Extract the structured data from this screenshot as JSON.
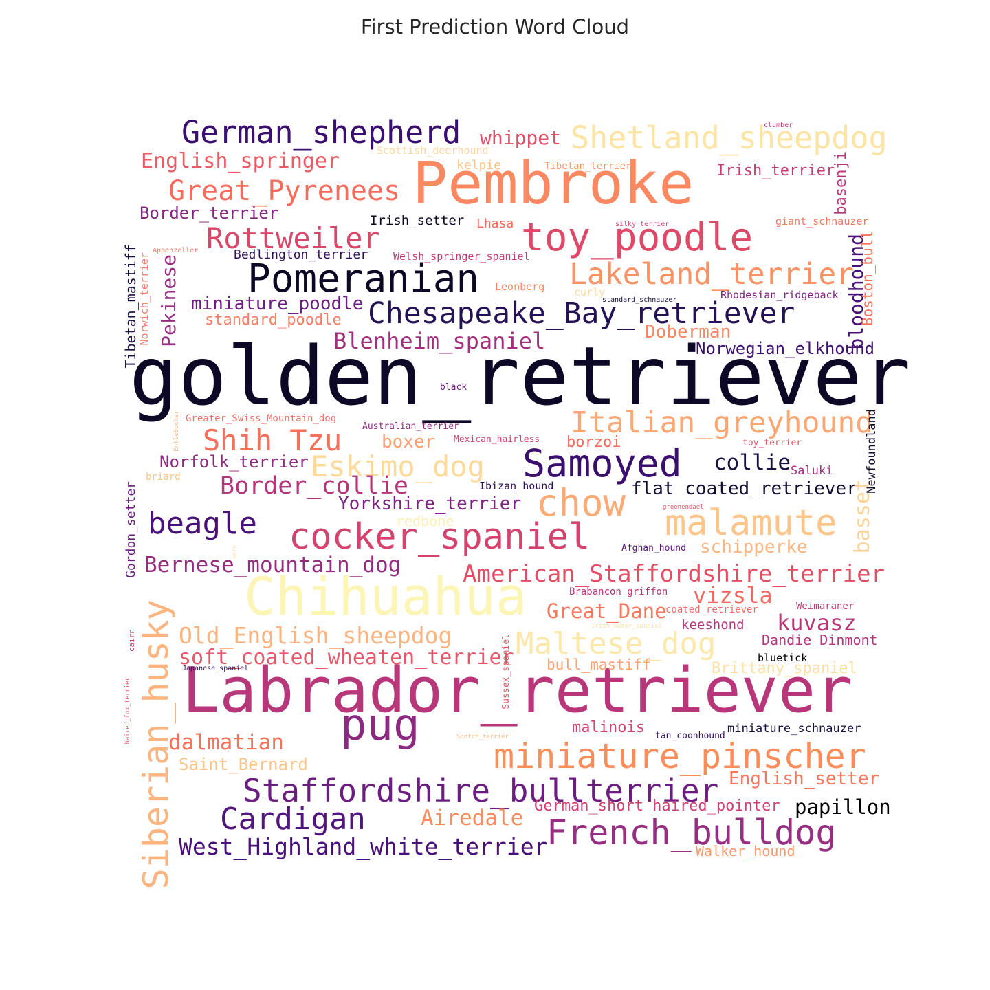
{
  "chart_data": {
    "type": "wordcloud",
    "title": "First Prediction Word Cloud",
    "words": [
      {
        "text": "golden_retriever",
        "weight": 100,
        "color": "#0c0826"
      },
      {
        "text": "Labrador_retriever",
        "weight": 68,
        "color": "#b8377a"
      },
      {
        "text": "Pembroke",
        "weight": 60,
        "color": "#fb8861"
      },
      {
        "text": "Chihuahua",
        "weight": 55,
        "color": "#fcf5b5"
      },
      {
        "text": "pug",
        "weight": 46,
        "color": "#8c2981"
      },
      {
        "text": "toy_poodle",
        "weight": 42,
        "color": "#de4968"
      },
      {
        "text": "Pomeranian",
        "weight": 42,
        "color": "#0c0826"
      },
      {
        "text": "chow",
        "weight": 40,
        "color": "#feaa74"
      },
      {
        "text": "Samoyed",
        "weight": 40,
        "color": "#3b0f70"
      },
      {
        "text": "cocker_spaniel",
        "weight": 39,
        "color": "#d3436e"
      },
      {
        "text": "miniature_pinscher",
        "weight": 38,
        "color": "#fc8d59"
      },
      {
        "text": "Siberian_husky",
        "weight": 38,
        "color": "#fdb47e"
      },
      {
        "text": "malamute",
        "weight": 38,
        "color": "#fec488"
      },
      {
        "text": "French_bulldog",
        "weight": 37,
        "color": "#962e81"
      },
      {
        "text": "Staffordshire_bullterrier",
        "weight": 34,
        "color": "#6b1d81"
      },
      {
        "text": "German_shepherd",
        "weight": 34,
        "color": "#3b0f70"
      },
      {
        "text": "Shetland_sheepdog",
        "weight": 34,
        "color": "#fde4a3"
      },
      {
        "text": "Cardigan",
        "weight": 33,
        "color": "#52157d"
      },
      {
        "text": "Lakeland_terrier",
        "weight": 32,
        "color": "#fc9163"
      },
      {
        "text": "Chesapeake_Bay_retriever",
        "weight": 32,
        "color": "#251254"
      },
      {
        "text": "Italian_greyhound",
        "weight": 32,
        "color": "#fea772"
      },
      {
        "text": "Maltese_dog",
        "weight": 32,
        "color": "#fde7a9"
      },
      {
        "text": "Eskimo_dog",
        "weight": 32,
        "color": "#feda9a"
      },
      {
        "text": "Great_Pyrenees",
        "weight": 31,
        "color": "#f66b5c"
      },
      {
        "text": "beagle",
        "weight": 31,
        "color": "#4a1079"
      },
      {
        "text": "Rottweiler",
        "weight": 30,
        "color": "#db476a"
      },
      {
        "text": "Shih Tzu",
        "weight": 30,
        "color": "#f7705c"
      },
      {
        "text": "American_Staffordshire_terrier",
        "weight": 27,
        "color": "#e34e65"
      },
      {
        "text": "Border_collie",
        "weight": 27,
        "color": "#b5367a"
      },
      {
        "text": "West_Highland_white_terrier",
        "weight": 27,
        "color": "#4a1079"
      },
      {
        "text": "Old_English_sheepdog",
        "weight": 27,
        "color": "#fdb37d"
      },
      {
        "text": "soft_coated_wheaten_terrier",
        "weight": 26,
        "color": "#e6576a"
      },
      {
        "text": "Blenheim_spaniel",
        "weight": 26,
        "color": "#a3307e"
      },
      {
        "text": "kuvasz",
        "weight": 26,
        "color": "#b8377a"
      },
      {
        "text": "vizsla",
        "weight": 26,
        "color": "#f4685d"
      },
      {
        "text": "Airedale",
        "weight": 26,
        "color": "#fc8c5f"
      },
      {
        "text": "collie",
        "weight": 26,
        "color": "#1a1042"
      },
      {
        "text": "dalmatian",
        "weight": 25,
        "color": "#f7705c"
      },
      {
        "text": "Bernese_mountain_dog",
        "weight": 25,
        "color": "#942c80"
      },
      {
        "text": "Great_Dane",
        "weight": 24,
        "color": "#f8765c"
      },
      {
        "text": "papillon",
        "weight": 24,
        "color": "#000004"
      },
      {
        "text": "English_springer",
        "weight": 24,
        "color": "#eb5b63"
      },
      {
        "text": "whippet",
        "weight": 24,
        "color": "#e04f67"
      },
      {
        "text": "miniature_poodle",
        "weight": 24,
        "color": "#6e1e81"
      },
      {
        "text": "Doberman",
        "weight": 24,
        "color": "#fb8761"
      },
      {
        "text": "Yorkshire_terrier",
        "weight": 24,
        "color": "#7c2382"
      },
      {
        "text": "flat coated_retriever",
        "weight": 24,
        "color": "#120d31"
      },
      {
        "text": "schipperke",
        "weight": 24,
        "color": "#feb47e"
      },
      {
        "text": "Saint_Bernard",
        "weight": 23,
        "color": "#fec488"
      },
      {
        "text": "English_setter",
        "weight": 23,
        "color": "#f8765c"
      },
      {
        "text": "boxer",
        "weight": 23,
        "color": "#fda06e"
      },
      {
        "text": "borzoi",
        "weight": 21,
        "color": "#f4685d"
      },
      {
        "text": "Norwegian_elkhound",
        "weight": 21,
        "color": "#3b0f70"
      },
      {
        "text": "Norfolk_terrier",
        "weight": 21,
        "color": "#902a81"
      },
      {
        "text": "Border_terrier",
        "weight": 21,
        "color": "#80257f"
      },
      {
        "text": "Pekinese",
        "weight": 24,
        "color": "#962e81"
      },
      {
        "text": "bloodhound",
        "weight": 24,
        "color": "#4a1079"
      },
      {
        "text": "basset",
        "weight": 24,
        "color": "#fed395"
      },
      {
        "text": "standard_poodle",
        "weight": 20,
        "color": "#f67e67"
      },
      {
        "text": "German_short haired_pointer",
        "weight": 20,
        "color": "#cf4070"
      },
      {
        "text": "Irish_terrier",
        "weight": 20,
        "color": "#c33d75"
      },
      {
        "text": "Brittany_spaniel",
        "weight": 20,
        "color": "#fde0a0"
      },
      {
        "text": "malinois",
        "weight": 20,
        "color": "#d3436e"
      },
      {
        "text": "bull_mastiff",
        "weight": 19,
        "color": "#fea16e"
      },
      {
        "text": "Dandie_Dinmont",
        "weight": 19,
        "color": "#b5367a"
      },
      {
        "text": "keeshond",
        "weight": 17,
        "color": "#b5367a"
      },
      {
        "text": "Walker_hound",
        "weight": 19,
        "color": "#fd9668"
      },
      {
        "text": "Irish_setter",
        "weight": 17,
        "color": "#0c0826"
      },
      {
        "text": "Tibetan_mastiff",
        "weight": 19,
        "color": "#1b1044"
      },
      {
        "text": "Boston_bull",
        "weight": 19,
        "color": "#f7725c"
      },
      {
        "text": "basenji",
        "weight": 19,
        "color": "#b8377a"
      },
      {
        "text": "Gordon_setter",
        "weight": 17,
        "color": "#6b1d81"
      },
      {
        "text": "Lhasa",
        "weight": 16,
        "color": "#f76a5c"
      },
      {
        "text": "kelpie",
        "weight": 16,
        "color": "#fec487"
      },
      {
        "text": "redbone",
        "weight": 18,
        "color": "#fdf0b5"
      },
      {
        "text": "Bedlington_terrier",
        "weight": 16,
        "color": "#2f115a"
      },
      {
        "text": "miniature_schnauzer",
        "weight": 16,
        "color": "#1b1044"
      },
      {
        "text": "Saluki",
        "weight": 16,
        "color": "#a3307e"
      },
      {
        "text": "Newfoundland",
        "weight": 16,
        "color": "#12102e"
      },
      {
        "text": "Ibizan_hound",
        "weight": 14,
        "color": "#2f115a"
      },
      {
        "text": "giant_schnauzer",
        "weight": 14,
        "color": "#f8765c"
      },
      {
        "text": "Rhodesian_ridgeback",
        "weight": 14,
        "color": "#7c2382"
      },
      {
        "text": "bluetick",
        "weight": 14,
        "color": "#000004"
      },
      {
        "text": "Welsh_springer_spaniel",
        "weight": 14,
        "color": "#c33d75"
      },
      {
        "text": "Norwich_terrier",
        "weight": 14,
        "color": "#f07f6b"
      },
      {
        "text": "Scottish_deerhound",
        "weight": 14,
        "color": "#fed9a0"
      },
      {
        "text": "Tibetan_terrier",
        "weight": 13,
        "color": "#fb9866"
      },
      {
        "text": "Leonberg",
        "weight": 14,
        "color": "#fb8761"
      },
      {
        "text": "curly",
        "weight": 14,
        "color": "#fedca0"
      },
      {
        "text": "Greater_Swiss_Mountain_dog",
        "weight": 13,
        "color": "#f36e68"
      },
      {
        "text": "Brabancon_griffon",
        "weight": 13,
        "color": "#b5367a"
      },
      {
        "text": "Weimaraner",
        "weight": 13,
        "color": "#c33d75"
      },
      {
        "text": "coated_retriever",
        "weight": 13,
        "color": "#f36e68"
      },
      {
        "text": "tan_coonhound",
        "weight": 12,
        "color": "#2f115a"
      },
      {
        "text": "Afghan_hound",
        "weight": 12,
        "color": "#5b167e"
      },
      {
        "text": "Sussex_spaniel",
        "weight": 12,
        "color": "#e75263"
      },
      {
        "text": "Mexican_hairless",
        "weight": 12,
        "color": "#d3436e"
      },
      {
        "text": "Australian_terrier",
        "weight": 12,
        "color": "#8c2981"
      },
      {
        "text": "toy_terrier",
        "weight": 12,
        "color": "#e54e66"
      },
      {
        "text": "briard",
        "weight": 13,
        "color": "#fec488"
      },
      {
        "text": "black",
        "weight": 12,
        "color": "#6b1d81"
      },
      {
        "text": "cairn",
        "weight": 10,
        "color": "#d3436e"
      },
      {
        "text": "Japanese_spaniel",
        "weight": 10,
        "color": "#2f115a"
      },
      {
        "text": "standard_schnauzer",
        "weight": 9,
        "color": "#1b1044"
      },
      {
        "text": "silky_terrier",
        "weight": 9,
        "color": "#d3436e"
      },
      {
        "text": "Appenzeller",
        "weight": 9,
        "color": "#f07f6b"
      },
      {
        "text": "clumber",
        "weight": 9,
        "color": "#c33d75"
      },
      {
        "text": "haired_fox_terrier",
        "weight": 9,
        "color": "#e75263"
      },
      {
        "text": "Scotch_terrier",
        "weight": 9,
        "color": "#fdbb84"
      },
      {
        "text": "Irish_water_spaniel",
        "weight": 9,
        "color": "#fde0a8"
      },
      {
        "text": "groenendael",
        "weight": 9,
        "color": "#e75263"
      },
      {
        "text": "EntleBucher",
        "weight": 8,
        "color": "#fdbb84"
      },
      {
        "text": "wire",
        "weight": 7,
        "color": "#fde0a8"
      }
    ]
  }
}
